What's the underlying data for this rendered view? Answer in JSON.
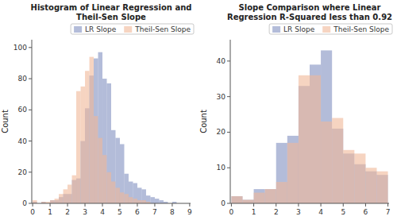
{
  "chart_data": [
    {
      "type": "histogram",
      "title": "Histogram of Linear Regression and Theil-Sen Slope",
      "ylabel": "Count",
      "bins": [
        0,
        0.25,
        0.5,
        0.75,
        1,
        1.25,
        1.5,
        1.75,
        2,
        2.25,
        2.5,
        2.75,
        3,
        3.25,
        3.5,
        3.75,
        4,
        4.25,
        4.5,
        4.75,
        5,
        5.25,
        5.5,
        5.75,
        6,
        6.25,
        6.5,
        6.75,
        7,
        7.25,
        7.5,
        7.75,
        8,
        8.25
      ],
      "series": [
        {
          "name": "LR Slope",
          "color": "#8090c0",
          "values": [
            1,
            0,
            1,
            0,
            2,
            2,
            4,
            6,
            6,
            15,
            16,
            40,
            61,
            82,
            93,
            97,
            80,
            77,
            47,
            42,
            38,
            19,
            14,
            13,
            10,
            9,
            5,
            4,
            3,
            2,
            1,
            0,
            1
          ]
        },
        {
          "name": "Theil-Sen Slope",
          "color": "#f0b898",
          "values": [
            2,
            0,
            1,
            1,
            2,
            3,
            6,
            9,
            12,
            18,
            72,
            75,
            85,
            94,
            56,
            42,
            31,
            20,
            14,
            10,
            7,
            6,
            4,
            3,
            2,
            2,
            1,
            0,
            0,
            0,
            0,
            0,
            0
          ]
        }
      ],
      "xlim": [
        -0.05,
        9.05
      ],
      "xticks": [
        0,
        1,
        2,
        3,
        4,
        5,
        6,
        7,
        8,
        9
      ],
      "ylim": [
        0,
        105
      ],
      "yticks": [
        0,
        20,
        40,
        60,
        80,
        100
      ],
      "grid": false,
      "legend": "upper-right"
    },
    {
      "type": "histogram",
      "title": "Slope Comparison where Linear Regression R-Squared less than 0.92",
      "ylabel": "Count",
      "bins": [
        0,
        0.5,
        1,
        1.5,
        2,
        2.5,
        3,
        3.5,
        4,
        4.5,
        5,
        5.5,
        6,
        6.5,
        7
      ],
      "series": [
        {
          "name": "LR Slope",
          "color": "#8090c0",
          "values": [
            2,
            1,
            4,
            4,
            17,
            19,
            33,
            39,
            43,
            21,
            14,
            11,
            9,
            8
          ]
        },
        {
          "name": "Theil-Sen Slope",
          "color": "#f0b898",
          "values": [
            2,
            1,
            3,
            4,
            6,
            17,
            36,
            36,
            23,
            24,
            15,
            14,
            10,
            9
          ]
        }
      ],
      "xlim": [
        -0.05,
        7.05
      ],
      "xticks": [
        0,
        1,
        2,
        3,
        4,
        5,
        6,
        7
      ],
      "ylim": [
        0,
        46
      ],
      "yticks": [
        0,
        10,
        20,
        30,
        40
      ],
      "grid": false,
      "legend": "upper-right"
    }
  ]
}
